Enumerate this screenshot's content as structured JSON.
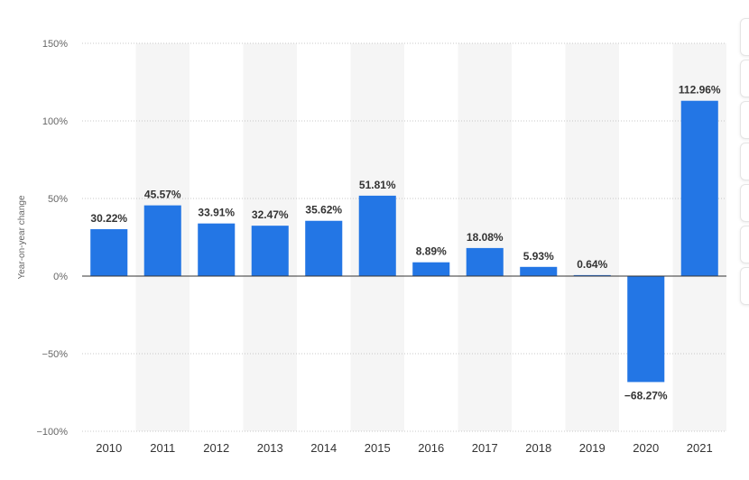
{
  "chart_data": {
    "type": "bar",
    "categories": [
      "2010",
      "2011",
      "2012",
      "2013",
      "2014",
      "2015",
      "2016",
      "2017",
      "2018",
      "2019",
      "2020",
      "2021"
    ],
    "values": [
      30.22,
      45.57,
      33.91,
      32.47,
      35.62,
      51.81,
      8.89,
      18.08,
      5.93,
      0.64,
      -68.27,
      112.96
    ],
    "data_labels": [
      "30.22%",
      "45.57%",
      "33.91%",
      "32.47%",
      "35.62%",
      "51.81%",
      "8.89%",
      "18.08%",
      "5.93%",
      "0.64%",
      "−68.27%",
      "112.96%"
    ],
    "ylabel": "Year-on-year change",
    "ylim": [
      -100,
      150
    ],
    "yticks": [
      150,
      100,
      50,
      0,
      -50,
      -100
    ],
    "ytick_labels": [
      "150%",
      "100%",
      "50%",
      "0%",
      "−50%",
      "−100%"
    ],
    "grid": true,
    "bar_color": "#2376e5",
    "alt_band_color": "#f5f5f5"
  }
}
